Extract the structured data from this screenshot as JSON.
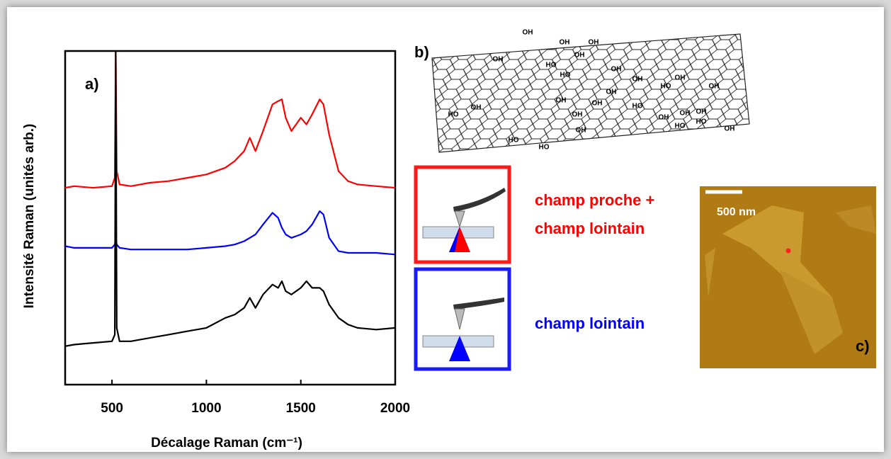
{
  "chart_data": {
    "type": "line",
    "xlabel": "Décalage Raman (cm⁻¹)",
    "ylabel": "Intensité Raman (unités arb.)",
    "annotation": "a)",
    "x": [
      252,
      300,
      400,
      500,
      515,
      520,
      525,
      540,
      600,
      700,
      800,
      900,
      1000,
      1100,
      1150,
      1200,
      1230,
      1260,
      1300,
      1350,
      1380,
      1400,
      1420,
      1450,
      1500,
      1530,
      1560,
      1600,
      1620,
      1650,
      1700,
      1750,
      1800,
      1900,
      2000
    ],
    "series": [
      {
        "color": "#ff0000",
        "values": [
          59,
          59.5,
          59,
          59.5,
          62,
          100,
          64,
          60,
          59.5,
          60.5,
          61,
          62,
          63,
          65,
          67,
          70,
          74,
          70,
          76,
          84,
          85,
          85.5,
          80,
          76,
          80,
          78,
          81,
          85.5,
          84,
          75,
          64,
          61,
          60,
          59.5,
          59
        ]
      },
      {
        "color": "#0000ff",
        "values": [
          41.5,
          41,
          41,
          41,
          42,
          44,
          42,
          41,
          40.5,
          40.5,
          40.5,
          40.5,
          41,
          41.5,
          42,
          43,
          44,
          45,
          48,
          51.5,
          50,
          47,
          45,
          44,
          45,
          46,
          48,
          52,
          51,
          44,
          40,
          39.5,
          39.5,
          39.5,
          39
        ]
      },
      {
        "color": "#000000",
        "values": [
          11.5,
          12,
          12.5,
          13,
          15,
          100,
          17,
          13,
          13,
          14,
          15,
          16,
          17,
          20,
          21,
          23,
          26,
          23,
          27,
          30,
          29,
          31,
          28,
          27,
          29,
          31,
          29,
          29,
          28,
          24,
          20,
          18,
          17,
          16.5,
          17
        ]
      }
    ],
    "xlim": [
      252,
      2000
    ],
    "ylim": [
      0,
      100
    ],
    "xticks": [
      500,
      1000,
      1500,
      2000
    ]
  },
  "molecule": {
    "label": "b)",
    "atoms": [
      "OH",
      "OH",
      "OH",
      "OH",
      "OH",
      "HO",
      "HO",
      "OH",
      "OH",
      "OH",
      "OH",
      "HO",
      "HO",
      "OH",
      "OH",
      "OH",
      "OH",
      "HO",
      "HO",
      "OH",
      "OH",
      "OH",
      "OH",
      "HO",
      "HO",
      "OH",
      "HO",
      "OH"
    ]
  },
  "tip_modes": {
    "near": [
      "champ proche +",
      "champ lointain"
    ],
    "far": "champ lointain"
  },
  "afm": {
    "scale": "500 nm",
    "label": "c)"
  }
}
